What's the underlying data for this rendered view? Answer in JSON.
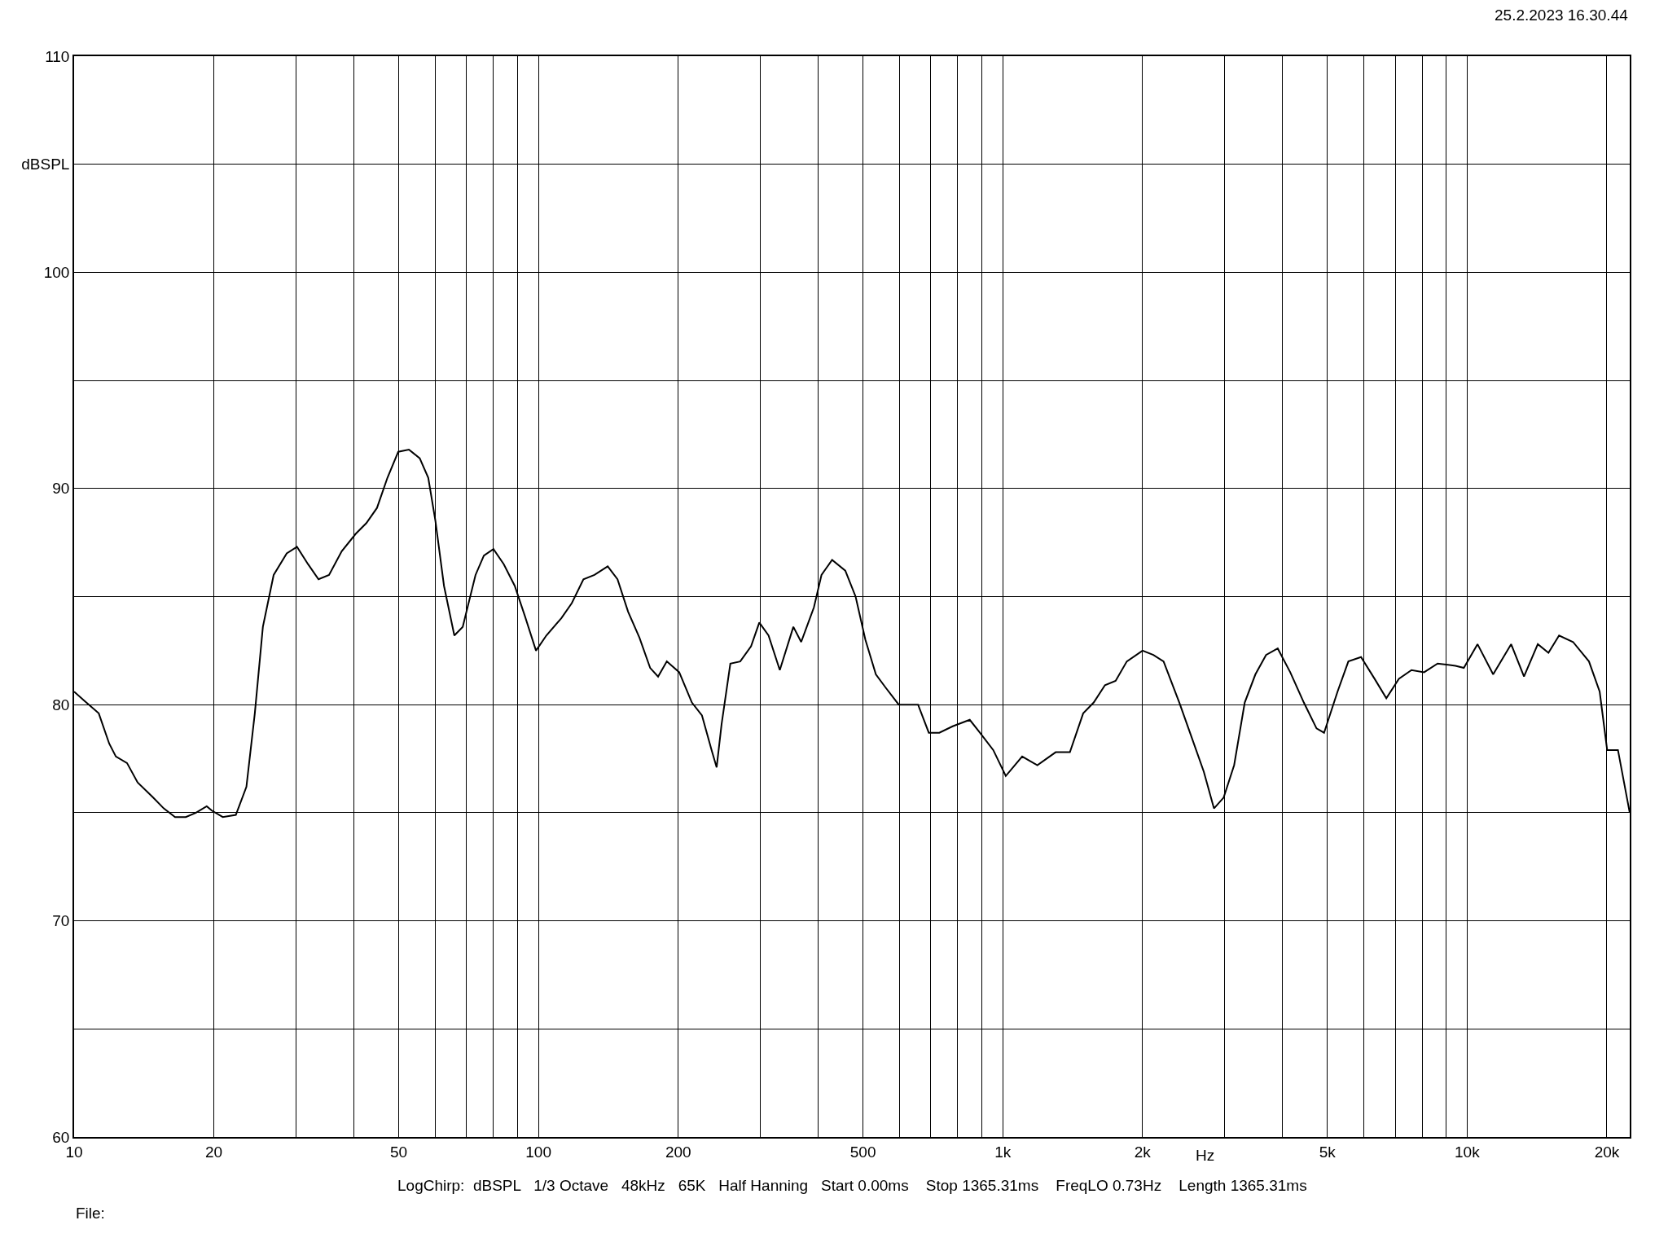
{
  "chart_data": {
    "type": "line",
    "xlabel": "Hz",
    "log": "x",
    "grid": true,
    "marker": "none",
    "line_style": "solid",
    "annotations": [
      "25.2.2023 16.30.44",
      "LogChirp:  dBSPL   1/3 Octave   48kHz   65K   Half Hanning   Start 0.00ms    Stop 1365.31ms    FreqLO 0.73Hz    Length 1365.31ms",
      "File:"
    ],
    "xlim": [
      10,
      22400
    ],
    "ylim": [
      60,
      110
    ],
    "xticks": [
      10,
      20,
      {
        "value": 30,
        "label": null
      },
      {
        "value": 40,
        "label": null
      },
      50,
      {
        "value": 60,
        "label": null
      },
      {
        "value": 70,
        "label": null
      },
      {
        "value": 80,
        "label": null
      },
      {
        "value": 90,
        "label": null
      },
      100,
      200,
      {
        "value": 300,
        "label": null
      },
      {
        "value": 400,
        "label": null
      },
      500,
      {
        "value": 600,
        "label": null
      },
      {
        "value": 700,
        "label": null
      },
      {
        "value": 800,
        "label": null
      },
      {
        "value": 900,
        "label": null
      },
      {
        "value": 1000,
        "label": "1k"
      },
      {
        "value": 2000,
        "label": "2k"
      },
      {
        "value": 3000,
        "label": null
      },
      {
        "value": 4000,
        "label": null
      },
      {
        "value": 5000,
        "label": "5k"
      },
      {
        "value": 6000,
        "label": null
      },
      {
        "value": 7000,
        "label": null
      },
      {
        "value": 8000,
        "label": null
      },
      {
        "value": 9000,
        "label": null
      },
      {
        "value": 10000,
        "label": "10k"
      },
      {
        "value": 20000,
        "label": "20k"
      }
    ],
    "yticks": [
      60,
      {
        "value": 65,
        "label": null
      },
      70,
      {
        "value": 75,
        "label": null
      },
      80,
      {
        "value": 85,
        "label": null
      },
      90,
      {
        "value": 95,
        "label": null
      },
      100,
      {
        "value": 105,
        "label": "dBSPL"
      },
      110
    ],
    "series": [
      {
        "color": "#000000",
        "x": [
          10,
          10.5,
          11.3,
          11.9,
          12.3,
          13,
          13.7,
          14.8,
          15.6,
          16.5,
          17.4,
          18.3,
          19.3,
          19.8,
          20.9,
          22.3,
          23.5,
          24.5,
          25.5,
          26.9,
          28.7,
          30.2,
          31.9,
          33.6,
          35.4,
          37.7,
          40.4,
          42.6,
          44.9,
          47.3,
          49.9,
          52.6,
          55.5,
          57.9,
          60,
          62.6,
          65.9,
          68.7,
          73.2,
          76.3,
          80,
          84.2,
          88.9,
          93.5,
          98.8,
          104,
          112,
          118,
          125,
          132,
          141,
          148,
          156,
          165,
          174,
          181,
          189,
          201,
          214,
          225,
          236,
          242,
          248,
          259,
          272,
          287,
          299,
          313,
          331,
          354,
          368,
          392,
          407,
          429,
          458,
          482,
          506,
          533,
          559,
          597,
          657,
          693,
          730,
          780,
          849,
          893,
          954,
          1015,
          1101,
          1187,
          1300,
          1395,
          1490,
          1570,
          1660,
          1750,
          1850,
          2000,
          2110,
          2220,
          2400,
          2560,
          2710,
          2850,
          2990,
          3150,
          3320,
          3500,
          3690,
          3910,
          4160,
          4450,
          4740,
          4920,
          5260,
          5550,
          5910,
          6320,
          6700,
          7130,
          7590,
          8080,
          8640,
          9440,
          9840,
          10530,
          11380,
          12440,
          13260,
          14200,
          14970,
          15780,
          16910,
          18300,
          19300,
          20030,
          21130,
          22400
        ],
        "values": [
          80.6,
          80.2,
          79.6,
          78.2,
          77.6,
          77.3,
          76.4,
          75.7,
          75.2,
          74.8,
          74.8,
          75,
          75.3,
          75.1,
          74.8,
          74.9,
          76.2,
          79.6,
          83.6,
          86,
          87,
          87.3,
          86.5,
          85.8,
          86,
          87.1,
          87.9,
          88.4,
          89.1,
          90.5,
          91.7,
          91.8,
          91.4,
          90.5,
          88.5,
          85.5,
          83.2,
          83.6,
          86,
          86.9,
          87.2,
          86.5,
          85.5,
          84.1,
          82.5,
          83.2,
          84,
          84.7,
          85.8,
          86,
          86.4,
          85.8,
          84.3,
          83.1,
          81.7,
          81.3,
          82,
          81.5,
          80.1,
          79.5,
          77.9,
          77.1,
          79.1,
          81.9,
          82,
          82.7,
          83.8,
          83.2,
          81.6,
          83.6,
          82.9,
          84.5,
          86,
          86.7,
          86.2,
          85,
          83,
          81.4,
          80.8,
          80,
          80,
          78.7,
          78.7,
          79,
          79.3,
          78.7,
          77.9,
          76.7,
          77.6,
          77.2,
          77.8,
          77.8,
          79.6,
          80.1,
          80.9,
          81.1,
          82,
          82.5,
          82.3,
          82,
          80.1,
          78.4,
          76.9,
          75.2,
          75.7,
          77.2,
          80.1,
          81.4,
          82.3,
          82.6,
          81.5,
          80.1,
          78.9,
          78.7,
          80.6,
          82,
          82.2,
          81.2,
          80.3,
          81.2,
          81.6,
          81.5,
          81.9,
          81.8,
          81.7,
          82.8,
          81.4,
          82.8,
          81.3,
          82.8,
          82.4,
          83.2,
          82.9,
          82,
          80.6,
          77.9,
          77.9,
          75
        ]
      }
    ]
  }
}
